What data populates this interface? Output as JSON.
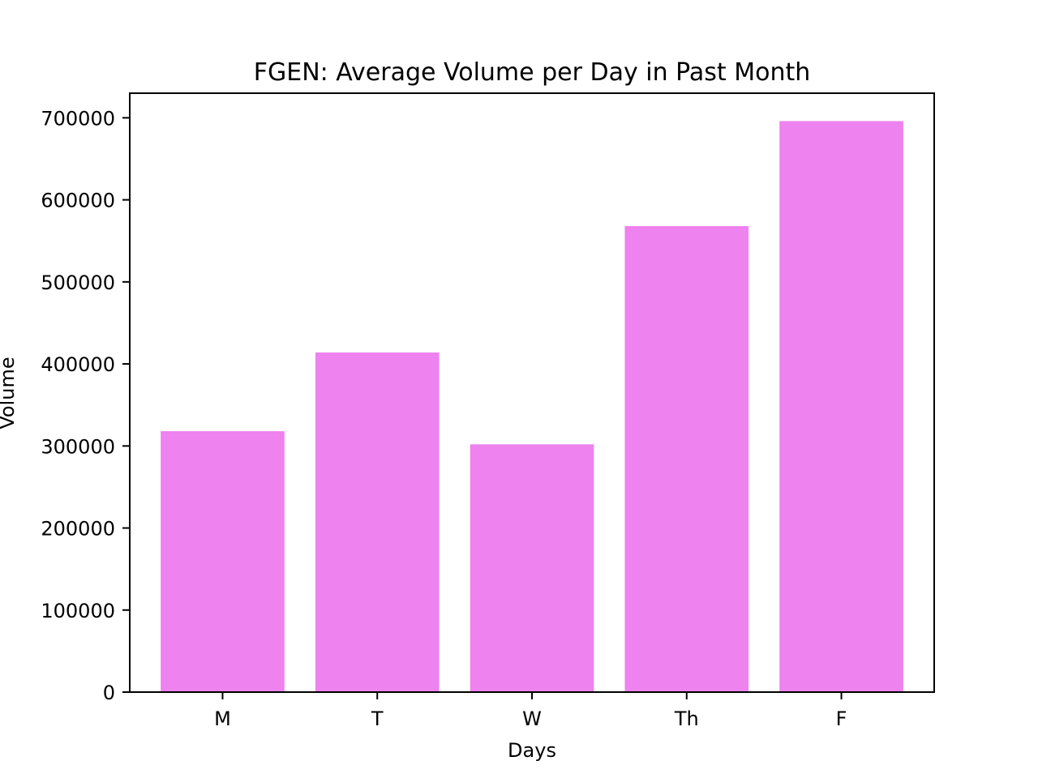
{
  "chart_data": {
    "type": "bar",
    "title": "FGEN: Average Volume per Day in Past Month",
    "xlabel": "Days",
    "ylabel": "Volume",
    "categories": [
      "M",
      "T",
      "W",
      "Th",
      "F"
    ],
    "values": [
      318000,
      414000,
      302000,
      568000,
      696000
    ],
    "ylim": [
      0,
      730000
    ],
    "yticks": [
      0,
      100000,
      200000,
      300000,
      400000,
      500000,
      600000,
      700000
    ],
    "ytick_labels": [
      "0",
      "100000",
      "200000",
      "300000",
      "400000",
      "500000",
      "600000",
      "700000"
    ],
    "bar_color": "#ee82ee",
    "grid": false,
    "legend": "none"
  }
}
